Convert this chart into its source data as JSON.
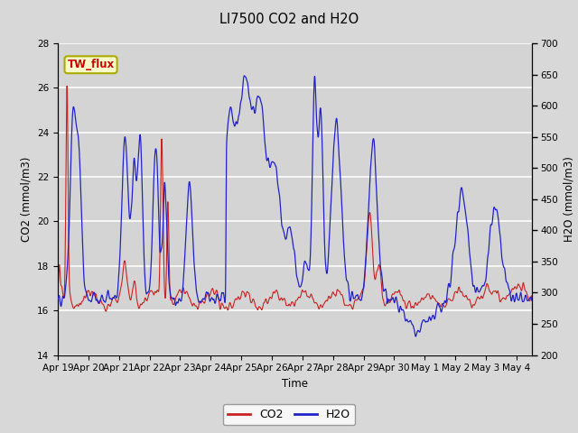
{
  "title": "LI7500 CO2 and H2O",
  "xlabel": "Time",
  "ylabel_left": "CO2 (mmol/m3)",
  "ylabel_right": "H2O (mmol/m3)",
  "ylim_left": [
    14,
    28
  ],
  "ylim_right": [
    200,
    700
  ],
  "yticks_left": [
    14,
    16,
    18,
    20,
    22,
    24,
    26,
    28
  ],
  "yticks_right": [
    200,
    250,
    300,
    350,
    400,
    450,
    500,
    550,
    600,
    650,
    700
  ],
  "xtick_labels": [
    "Apr 19",
    "Apr 20",
    "Apr 21",
    "Apr 22",
    "Apr 23",
    "Apr 24",
    "Apr 25",
    "Apr 26",
    "Apr 27",
    "Apr 28",
    "Apr 29",
    "Apr 30",
    "May 1",
    "May 2",
    "May 3",
    "May 4"
  ],
  "bg_color": "#d8d8d8",
  "plot_bg_color": "#d4d4d4",
  "grid_color": "#ffffff",
  "co2_color": "#cc2222",
  "h2o_color": "#2222cc",
  "tw_flux_color": "#cc0000",
  "tw_flux_bg": "#ffffcc",
  "tw_flux_edge": "#aaaa00"
}
